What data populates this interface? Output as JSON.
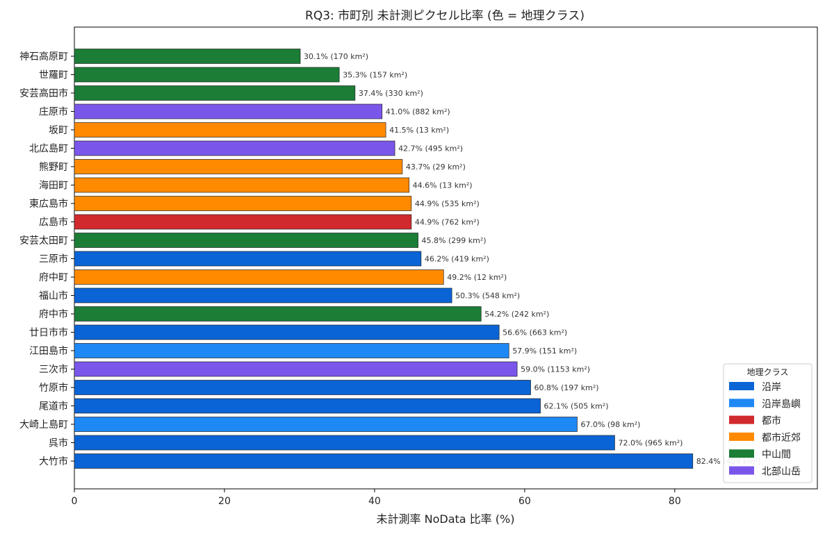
{
  "chart_data": {
    "type": "bar",
    "orientation": "horizontal",
    "title": "RQ3: 市町別 未計測ピクセル比率 (色 = 地理クラス)",
    "xlabel": "未計測率 NoData 比率 (%)",
    "ylabel": "",
    "xlim": [
      0,
      99
    ],
    "xticks": [
      "0",
      "20",
      "40",
      "60",
      "80"
    ],
    "xtick_values": [
      0,
      20,
      40,
      60,
      80
    ],
    "grid": false,
    "legend": {
      "title": "地理クラス",
      "placement": "lower-right",
      "entries": [
        {
          "name": "沿岸",
          "color": "#0a64d6"
        },
        {
          "name": "沿岸島嶼",
          "color": "#1e88f5"
        },
        {
          "name": "都市",
          "color": "#d12a2e"
        },
        {
          "name": "都市近郊",
          "color": "#ff8a00"
        },
        {
          "name": "中山間",
          "color": "#1b7d36"
        },
        {
          "name": "北部山岳",
          "color": "#7a57ea"
        }
      ]
    },
    "bars": [
      {
        "category": "神石高原町",
        "value": 30.1,
        "label": "30.1% (170 km²)",
        "class": "中山間",
        "color": "#1b7d36"
      },
      {
        "category": "世羅町",
        "value": 35.3,
        "label": "35.3% (157 km²)",
        "class": "中山間",
        "color": "#1b7d36"
      },
      {
        "category": "安芸高田市",
        "value": 37.4,
        "label": "37.4% (330 km²)",
        "class": "中山間",
        "color": "#1b7d36"
      },
      {
        "category": "庄原市",
        "value": 41.0,
        "label": "41.0% (882 km²)",
        "class": "北部山岳",
        "color": "#7a57ea"
      },
      {
        "category": "坂町",
        "value": 41.5,
        "label": "41.5% (13 km²)",
        "class": "都市近郊",
        "color": "#ff8a00"
      },
      {
        "category": "北広島町",
        "value": 42.7,
        "label": "42.7% (495 km²)",
        "class": "北部山岳",
        "color": "#7a57ea"
      },
      {
        "category": "熊野町",
        "value": 43.7,
        "label": "43.7% (29 km²)",
        "class": "都市近郊",
        "color": "#ff8a00"
      },
      {
        "category": "海田町",
        "value": 44.6,
        "label": "44.6% (13 km²)",
        "class": "都市近郊",
        "color": "#ff8a00"
      },
      {
        "category": "東広島市",
        "value": 44.9,
        "label": "44.9% (535 km²)",
        "class": "都市近郊",
        "color": "#ff8a00"
      },
      {
        "category": "広島市",
        "value": 44.9,
        "label": "44.9% (762 km²)",
        "class": "都市",
        "color": "#d12a2e"
      },
      {
        "category": "安芸太田町",
        "value": 45.8,
        "label": "45.8% (299 km²)",
        "class": "中山間",
        "color": "#1b7d36"
      },
      {
        "category": "三原市",
        "value": 46.2,
        "label": "46.2% (419 km²)",
        "class": "沿岸",
        "color": "#0a64d6"
      },
      {
        "category": "府中町",
        "value": 49.2,
        "label": "49.2% (12 km²)",
        "class": "都市近郊",
        "color": "#ff8a00"
      },
      {
        "category": "福山市",
        "value": 50.3,
        "label": "50.3% (548 km²)",
        "class": "沿岸",
        "color": "#0a64d6"
      },
      {
        "category": "府中市",
        "value": 54.2,
        "label": "54.2% (242 km²)",
        "class": "中山間",
        "color": "#1b7d36"
      },
      {
        "category": "廿日市市",
        "value": 56.6,
        "label": "56.6% (663 km²)",
        "class": "沿岸",
        "color": "#0a64d6"
      },
      {
        "category": "江田島市",
        "value": 57.9,
        "label": "57.9% (151 km²)",
        "class": "沿岸島嶼",
        "color": "#1e88f5"
      },
      {
        "category": "三次市",
        "value": 59.0,
        "label": "59.0% (1153 km²)",
        "class": "北部山岳",
        "color": "#7a57ea"
      },
      {
        "category": "竹原市",
        "value": 60.8,
        "label": "60.8% (197 km²)",
        "class": "沿岸",
        "color": "#0a64d6"
      },
      {
        "category": "尾道市",
        "value": 62.1,
        "label": "62.1% (505 km²)",
        "class": "沿岸",
        "color": "#0a64d6"
      },
      {
        "category": "大崎上島町",
        "value": 67.0,
        "label": "67.0% (98 km²)",
        "class": "沿岸島嶼",
        "color": "#1e88f5"
      },
      {
        "category": "呉市",
        "value": 72.0,
        "label": "72.0% (965 km²)",
        "class": "沿岸",
        "color": "#0a64d6"
      },
      {
        "category": "大竹市",
        "value": 82.4,
        "label": "82.4% (409 km²)",
        "class": "沿岸",
        "color": "#0a64d6"
      }
    ]
  }
}
